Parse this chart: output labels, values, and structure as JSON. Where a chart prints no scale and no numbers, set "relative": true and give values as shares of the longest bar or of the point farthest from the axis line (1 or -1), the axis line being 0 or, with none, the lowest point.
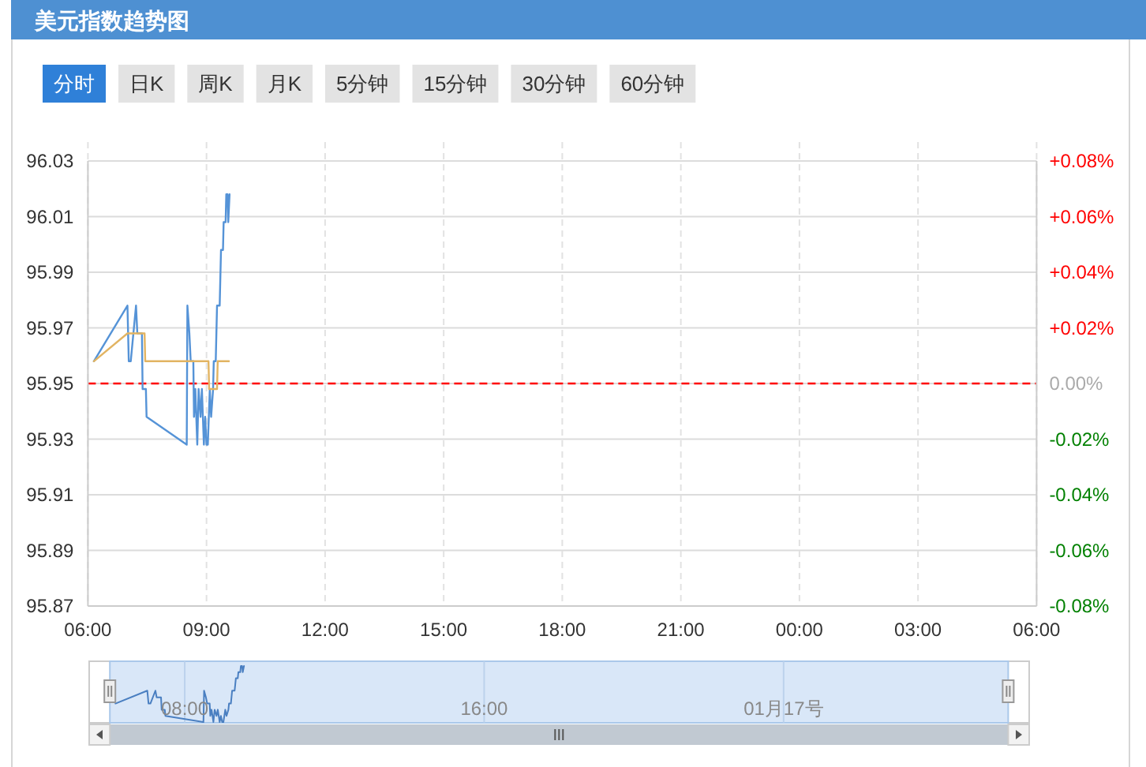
{
  "chart_data": [
    {
      "type": "line",
      "title": "美元指数趋势图",
      "series": [
        {
          "color": "#5593d7",
          "x": [
            "--01-16T06:09",
            "--01-16T07:00",
            "--01-16T07:02",
            "--01-16T07:05",
            "--01-16T07:13",
            "--01-16T07:15",
            "--01-16T07:22",
            "--01-16T07:23",
            "--01-16T07:28",
            "--01-16T07:29",
            "--01-16T08:30",
            "--01-16T08:31",
            "--01-16T08:34",
            "--01-16T08:36",
            "--01-16T08:40",
            "--01-16T08:41",
            "--01-16T08:43",
            "--01-16T08:46",
            "--01-16T08:48",
            "--01-16T08:51",
            "--01-16T08:53",
            "--01-16T08:56",
            "--01-16T08:58",
            "--01-16T09:00",
            "--01-16T09:02",
            "--01-16T09:05",
            "--01-16T09:07",
            "--01-16T09:10",
            "--01-16T09:11",
            "--01-16T09:14",
            "--01-16T09:16",
            "--01-16T09:20",
            "--01-16T09:21",
            "--01-16T09:22",
            "--01-16T09:25",
            "--01-16T09:26",
            "--01-16T09:29",
            "--01-16T09:30",
            "--01-16T09:32",
            "--01-16T09:33",
            "--01-16T09:35"
          ],
          "values": [
            95.958,
            95.978,
            95.958,
            95.958,
            95.978,
            95.968,
            95.968,
            95.948,
            95.948,
            95.938,
            95.928,
            95.978,
            95.968,
            95.958,
            95.958,
            95.938,
            95.948,
            95.928,
            95.948,
            95.938,
            95.948,
            95.928,
            95.938,
            95.928,
            95.928,
            95.948,
            95.938,
            95.948,
            95.958,
            95.958,
            95.978,
            95.978,
            95.988,
            95.998,
            95.998,
            96.008,
            96.008,
            96.018,
            96.018,
            96.008,
            96.018
          ]
        },
        {
          "color": "#e2b462",
          "x": [
            "--01-16T06:09",
            "--01-16T07:00",
            "--01-16T07:26",
            "--01-16T07:27",
            "--01-16T09:03",
            "--01-16T09:04",
            "--01-16T09:16",
            "--01-16T09:17",
            "--01-16T09:34"
          ],
          "values": [
            95.958,
            95.968,
            95.968,
            95.958,
            95.958,
            95.948,
            95.948,
            95.958,
            95.958
          ]
        }
      ],
      "xlim": [
        "--01-16T06:00",
        "--01-17T06:00"
      ],
      "xticks": [
        {
          "value": "--01-16T06:00",
          "label": "06:00"
        },
        {
          "value": "--01-16T09:00",
          "label": "09:00"
        },
        {
          "value": "--01-16T12:00",
          "label": "12:00"
        },
        {
          "value": "--01-16T15:00",
          "label": "15:00"
        },
        {
          "value": "--01-16T18:00",
          "label": "18:00"
        },
        {
          "value": "--01-16T21:00",
          "label": "21:00"
        },
        {
          "value": "--01-17T00:00",
          "label": "00:00"
        },
        {
          "value": "--01-17T03:00",
          "label": "03:00"
        },
        {
          "value": "--01-17T06:00",
          "label": "06:00"
        }
      ],
      "ylim": [
        95.87,
        96.03
      ],
      "yticks": [
        95.87,
        95.89,
        95.91,
        95.93,
        95.95,
        95.97,
        95.99,
        96.01,
        96.03
      ],
      "y2lim": [
        -0.08,
        0.08
      ],
      "y2ticks": [
        {
          "value": -0.08,
          "label": "-0.08%"
        },
        {
          "value": -0.06,
          "label": "-0.06%"
        },
        {
          "value": -0.04,
          "label": "-0.04%"
        },
        {
          "value": -0.02,
          "label": "-0.02%"
        },
        {
          "value": 0,
          "label": "0.00%"
        },
        {
          "value": 0.02,
          "label": "+0.02%"
        },
        {
          "value": 0.04,
          "label": "+0.04%"
        },
        {
          "value": 0.06,
          "label": "+0.06%"
        },
        {
          "value": 0.08,
          "label": "+0.08%"
        }
      ],
      "ref_lines": [
        {
          "axis": "y",
          "value": 95.95,
          "color": "#ff0000",
          "line_style": "dashed"
        }
      ],
      "grid": true
    },
    {
      "type": "other",
      "annotations": [
        "分时",
        "日K",
        "周K",
        "月K",
        "5分钟",
        "15分钟",
        "30分钟",
        "60分钟"
      ]
    },
    {
      "type": "line",
      "x": [
        "--01-16T06:09",
        "--01-16T07:00",
        "--01-16T07:02",
        "--01-16T07:05",
        "--01-16T07:13",
        "--01-16T07:15",
        "--01-16T07:22",
        "--01-16T07:23",
        "--01-16T07:28",
        "--01-16T07:29",
        "--01-16T08:30",
        "--01-16T08:31",
        "--01-16T08:34",
        "--01-16T08:36",
        "--01-16T08:40",
        "--01-16T08:41",
        "--01-16T08:43",
        "--01-16T08:46",
        "--01-16T08:48",
        "--01-16T08:51",
        "--01-16T08:53",
        "--01-16T08:56",
        "--01-16T08:58",
        "--01-16T09:00",
        "--01-16T09:02",
        "--01-16T09:05",
        "--01-16T09:07",
        "--01-16T09:10",
        "--01-16T09:11",
        "--01-16T09:14",
        "--01-16T09:16",
        "--01-16T09:20",
        "--01-16T09:21",
        "--01-16T09:22",
        "--01-16T09:25",
        "--01-16T09:26",
        "--01-16T09:29",
        "--01-16T09:30",
        "--01-16T09:32",
        "--01-16T09:33",
        "--01-16T09:35"
      ],
      "series": [
        {
          "color": "#4a7fc1",
          "values": [
            0.33,
            0.56,
            0.33,
            0.33,
            0.56,
            0.44,
            0.44,
            0.22,
            0.22,
            0.11,
            0,
            0.56,
            0.44,
            0.33,
            0.33,
            0.11,
            0.22,
            0,
            0.22,
            0.11,
            0.22,
            0,
            0.11,
            0,
            0,
            0.22,
            0.11,
            0.22,
            0.33,
            0.33,
            0.56,
            0.56,
            0.67,
            0.78,
            0.78,
            0.89,
            0.89,
            1,
            1,
            0.89,
            1
          ]
        }
      ],
      "relative": true,
      "xlim": [
        "--01-16T06:00",
        "--01-17T06:00"
      ],
      "xticks": [
        {
          "value": "--01-16T08:00",
          "label": "08:00"
        },
        {
          "value": "--01-16T16:00",
          "label": "16:00"
        },
        {
          "value": "--01-17T00:00",
          "label": "01月17号"
        }
      ],
      "tick_labels": "x",
      "grid": "x"
    }
  ]
}
